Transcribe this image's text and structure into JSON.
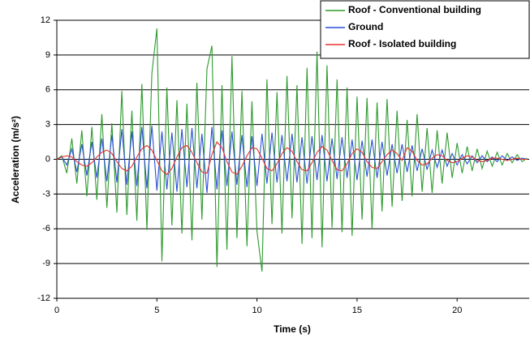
{
  "chart_data": {
    "type": "line",
    "xlabel": "Time (s)",
    "ylabel": "Acceleration (m/s²)",
    "xlim": [
      0,
      23.6
    ],
    "xticks": [
      0,
      5,
      10,
      15,
      20
    ],
    "ylim": [
      -12,
      12
    ],
    "yticks": [
      -12,
      -9,
      -6,
      -3,
      0,
      3,
      6,
      9,
      12
    ],
    "grid": true,
    "legend": "upper right",
    "x": [
      0,
      0.25,
      0.5,
      0.75,
      1,
      1.25,
      1.5,
      1.75,
      2,
      2.25,
      2.5,
      2.75,
      3,
      3.25,
      3.5,
      3.75,
      4,
      4.25,
      4.5,
      4.75,
      5,
      5.25,
      5.5,
      5.75,
      6,
      6.25,
      6.5,
      6.75,
      7,
      7.25,
      7.5,
      7.75,
      8,
      8.25,
      8.5,
      8.75,
      9,
      9.25,
      9.5,
      9.75,
      10,
      10.25,
      10.5,
      10.75,
      11,
      11.25,
      11.5,
      11.75,
      12,
      12.25,
      12.5,
      12.75,
      13,
      13.25,
      13.5,
      13.75,
      14,
      14.25,
      14.5,
      14.75,
      15,
      15.25,
      15.5,
      15.75,
      16,
      16.25,
      16.5,
      16.75,
      17,
      17.25,
      17.5,
      17.75,
      18,
      18.25,
      18.5,
      18.75,
      19,
      19.25,
      19.5,
      19.75,
      20,
      20.25,
      20.5,
      20.75,
      21,
      21.25,
      21.5,
      21.75,
      22,
      22.25,
      22.5,
      22.75,
      23,
      23.25,
      23.5
    ],
    "series": [
      {
        "name": "Roof - Conventional building",
        "color": "#2e9a2e",
        "values": [
          0,
          0.3,
          -1.2,
          1.8,
          -2.1,
          2.5,
          -3.2,
          2.8,
          -3.5,
          3.9,
          -4.2,
          3.1,
          -4.6,
          5.9,
          -4.8,
          4.2,
          -5.3,
          6.5,
          -6.1,
          7.4,
          11.3,
          -8.8,
          6.2,
          -5.7,
          5.1,
          -6.4,
          4.8,
          -7.0,
          6.6,
          -5.2,
          7.8,
          9.8,
          -9.3,
          6.4,
          -7.8,
          8.9,
          -6.8,
          5.9,
          -7.5,
          5.0,
          -6.2,
          -9.7,
          6.9,
          -5.6,
          5.8,
          -6.4,
          7.2,
          -5.1,
          6.4,
          -7.3,
          7.9,
          -6.8,
          9.3,
          -7.6,
          8.1,
          -5.9,
          6.9,
          -6.3,
          6.2,
          -6.6,
          5.4,
          -5.2,
          5.3,
          -6.0,
          4.9,
          -4.5,
          5.2,
          -4.1,
          4.2,
          -3.6,
          3.4,
          -3.2,
          3.9,
          -2.8,
          2.7,
          -2.9,
          2.5,
          -2.1,
          2.3,
          -1.6,
          1.4,
          -1.2,
          1.1,
          -1.0,
          0.9,
          -0.8,
          0.7,
          -0.6,
          0.6,
          -0.5,
          0.5,
          -0.3,
          0.4,
          -0.2,
          0.1
        ]
      },
      {
        "name": "Ground",
        "color": "#2a4fd6",
        "values": [
          0,
          0.2,
          -0.5,
          0.9,
          -1.1,
          1.3,
          -1.4,
          1.5,
          -1.6,
          1.8,
          -1.9,
          2.1,
          -2.0,
          2.6,
          -2.2,
          2.4,
          -2.3,
          2.8,
          -2.5,
          2.9,
          -2.7,
          2.4,
          -2.6,
          2.3,
          -2.8,
          2.6,
          -2.4,
          2.7,
          -2.5,
          2.2,
          -2.9,
          2.8,
          -2.6,
          2.5,
          -2.3,
          2.4,
          -2.2,
          2.1,
          -2.4,
          2.0,
          -2.3,
          2.2,
          -2.1,
          2.3,
          -2.0,
          2.1,
          -1.9,
          2.2,
          -2.0,
          1.9,
          -2.1,
          2.0,
          -1.8,
          2.1,
          -1.9,
          1.8,
          -1.7,
          1.9,
          -1.6,
          1.7,
          -1.8,
          1.6,
          -1.5,
          1.7,
          -1.6,
          1.5,
          -1.4,
          1.3,
          -1.2,
          1.3,
          -1.1,
          1.2,
          -1.0,
          0.9,
          -0.9,
          0.8,
          -0.7,
          0.8,
          -0.6,
          0.5,
          -0.5,
          0.4,
          -0.4,
          0.3,
          -0.3,
          0.3,
          -0.2,
          0.2,
          -0.2,
          0.3,
          -0.1,
          0.2,
          -0.1,
          0.1,
          0
        ]
      },
      {
        "name": "Roof - Isolated building",
        "color": "#e8322a",
        "values": [
          0,
          0.2,
          0.3,
          0.2,
          -0.2,
          -0.5,
          -0.6,
          -0.3,
          0.2,
          0.6,
          0.8,
          0.5,
          -0.2,
          -0.8,
          -1.0,
          -0.6,
          0.2,
          0.9,
          1.2,
          0.8,
          -0.1,
          -1.0,
          -1.3,
          -0.8,
          0.2,
          1.0,
          1.2,
          0.6,
          -0.3,
          -1.1,
          -1.2,
          0.4,
          1.5,
          1.0,
          -0.2,
          -1.1,
          -1.3,
          -0.6,
          0.3,
          1.0,
          0.9,
          0.1,
          -0.8,
          -1.0,
          -0.4,
          0.5,
          1.0,
          0.7,
          -0.2,
          -0.9,
          -1.0,
          -0.3,
          0.6,
          1.1,
          0.8,
          -0.1,
          -0.9,
          -1.0,
          -0.4,
          0.5,
          0.9,
          0.6,
          -0.2,
          -0.7,
          -0.8,
          -0.2,
          0.4,
          0.8,
          0.5,
          -0.1,
          1.0,
          0.7,
          -0.1,
          -0.5,
          -0.4,
          0.1,
          0.4,
          0.3,
          -0.1,
          -0.3,
          -0.2,
          0.1,
          0.3,
          0.2,
          -0.1,
          -0.2,
          -0.1,
          0.1,
          0.1,
          0,
          -0.1,
          0,
          0.1,
          0,
          0
        ]
      }
    ]
  }
}
